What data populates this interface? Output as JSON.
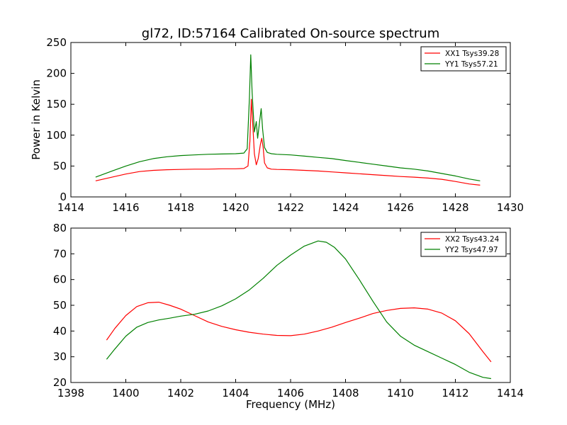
{
  "figure_title": "gl72, ID:57164 Calibrated On-source spectrum",
  "chart_data": [
    {
      "type": "line",
      "title": "gl72, ID:57164 Calibrated On-source spectrum",
      "xlabel": "",
      "ylabel": "Power in Kelvin",
      "xlim": [
        1414,
        1430
      ],
      "ylim": [
        0,
        250
      ],
      "xticks": [
        "1414",
        "1416",
        "1418",
        "1420",
        "1422",
        "1424",
        "1426",
        "1428",
        "1430"
      ],
      "yticks": [
        "0",
        "50",
        "100",
        "150",
        "200",
        "250"
      ],
      "grid": false,
      "legend_position": "top-right",
      "series": [
        {
          "name": "XX1 Tsys39.28",
          "color": "#ff0000",
          "x": [
            1414.9,
            1415.5,
            1416.0,
            1416.5,
            1417.0,
            1417.5,
            1418.0,
            1418.5,
            1419.0,
            1419.5,
            1420.0,
            1420.3,
            1420.45,
            1420.52,
            1420.57,
            1420.62,
            1420.68,
            1420.75,
            1420.82,
            1420.9,
            1420.95,
            1421.0,
            1421.05,
            1421.15,
            1421.3,
            1421.5,
            1422.0,
            1422.5,
            1423.0,
            1423.5,
            1424.0,
            1424.5,
            1425.0,
            1425.5,
            1426.0,
            1426.5,
            1427.0,
            1427.5,
            1428.0,
            1428.5,
            1428.9
          ],
          "y": [
            26,
            32,
            37,
            41,
            43,
            44,
            44.5,
            45,
            45,
            45.5,
            45.5,
            46,
            50,
            90,
            158,
            120,
            70,
            52,
            62,
            85,
            95,
            80,
            55,
            47,
            45,
            44.5,
            44,
            43,
            42,
            40.5,
            39,
            37.5,
            36,
            34.5,
            33,
            32,
            30.5,
            28.5,
            25,
            21,
            19
          ]
        },
        {
          "name": "YY1 Tsys57.21",
          "color": "#008000",
          "x": [
            1414.9,
            1415.5,
            1416.0,
            1416.5,
            1417.0,
            1417.5,
            1418.0,
            1418.5,
            1419.0,
            1419.5,
            1420.0,
            1420.3,
            1420.42,
            1420.5,
            1420.55,
            1420.6,
            1420.68,
            1420.75,
            1420.8,
            1420.88,
            1420.93,
            1420.98,
            1421.05,
            1421.15,
            1421.3,
            1421.5,
            1422.0,
            1422.5,
            1423.0,
            1423.5,
            1424.0,
            1424.5,
            1425.0,
            1425.5,
            1426.0,
            1426.5,
            1427.0,
            1427.5,
            1428.0,
            1428.5,
            1428.9
          ],
          "y": [
            32,
            42,
            50,
            57,
            62,
            65,
            67,
            68,
            69,
            69.5,
            70,
            71,
            78,
            160,
            230,
            170,
            105,
            122,
            95,
            125,
            143,
            110,
            80,
            72,
            70,
            69,
            68,
            66,
            64,
            62,
            59,
            56,
            53,
            50,
            47,
            45,
            42,
            38,
            34,
            29,
            26
          ]
        }
      ]
    },
    {
      "type": "line",
      "title": "",
      "xlabel": "Frequency (MHz)",
      "ylabel": "",
      "xlim": [
        1398,
        1414
      ],
      "ylim": [
        20,
        80
      ],
      "xticks": [
        "1398",
        "1400",
        "1402",
        "1404",
        "1406",
        "1408",
        "1410",
        "1412",
        "1414"
      ],
      "yticks": [
        "20",
        "30",
        "40",
        "50",
        "60",
        "70",
        "80"
      ],
      "grid": false,
      "legend_position": "top-right",
      "series": [
        {
          "name": "XX2 Tsys43.24",
          "color": "#ff0000",
          "x": [
            1399.3,
            1399.6,
            1400.0,
            1400.4,
            1400.8,
            1401.2,
            1401.6,
            1402.0,
            1402.5,
            1403.0,
            1403.5,
            1404.0,
            1404.5,
            1405.0,
            1405.5,
            1406.0,
            1406.5,
            1407.0,
            1407.5,
            1408.0,
            1408.5,
            1409.0,
            1409.5,
            1410.0,
            1410.5,
            1411.0,
            1411.5,
            1412.0,
            1412.5,
            1413.0,
            1413.3
          ],
          "y": [
            36.5,
            41,
            46,
            49.5,
            51,
            51.2,
            50,
            48.5,
            46,
            43.5,
            41.8,
            40.5,
            39.5,
            38.8,
            38.3,
            38.2,
            38.8,
            40,
            41.5,
            43.3,
            45,
            46.8,
            48,
            48.8,
            49,
            48.5,
            47,
            44,
            39,
            32,
            28
          ]
        },
        {
          "name": "YY2 Tsys47.97",
          "color": "#008000",
          "x": [
            1399.3,
            1399.6,
            1400.0,
            1400.4,
            1400.8,
            1401.2,
            1401.6,
            1402.0,
            1402.5,
            1403.0,
            1403.5,
            1404.0,
            1404.5,
            1405.0,
            1405.5,
            1406.0,
            1406.5,
            1407.0,
            1407.3,
            1407.6,
            1408.0,
            1408.5,
            1409.0,
            1409.5,
            1410.0,
            1410.5,
            1411.0,
            1411.5,
            1412.0,
            1412.5,
            1413.0,
            1413.3
          ],
          "y": [
            29,
            33,
            38,
            41.5,
            43.3,
            44.3,
            45,
            45.8,
            46.5,
            47.8,
            49.8,
            52.5,
            56,
            60.5,
            65.5,
            69.5,
            73,
            75,
            74.5,
            72.5,
            68,
            60,
            51.5,
            43.5,
            38,
            34.5,
            32,
            29.5,
            27,
            24,
            22,
            21.5
          ]
        }
      ]
    }
  ]
}
